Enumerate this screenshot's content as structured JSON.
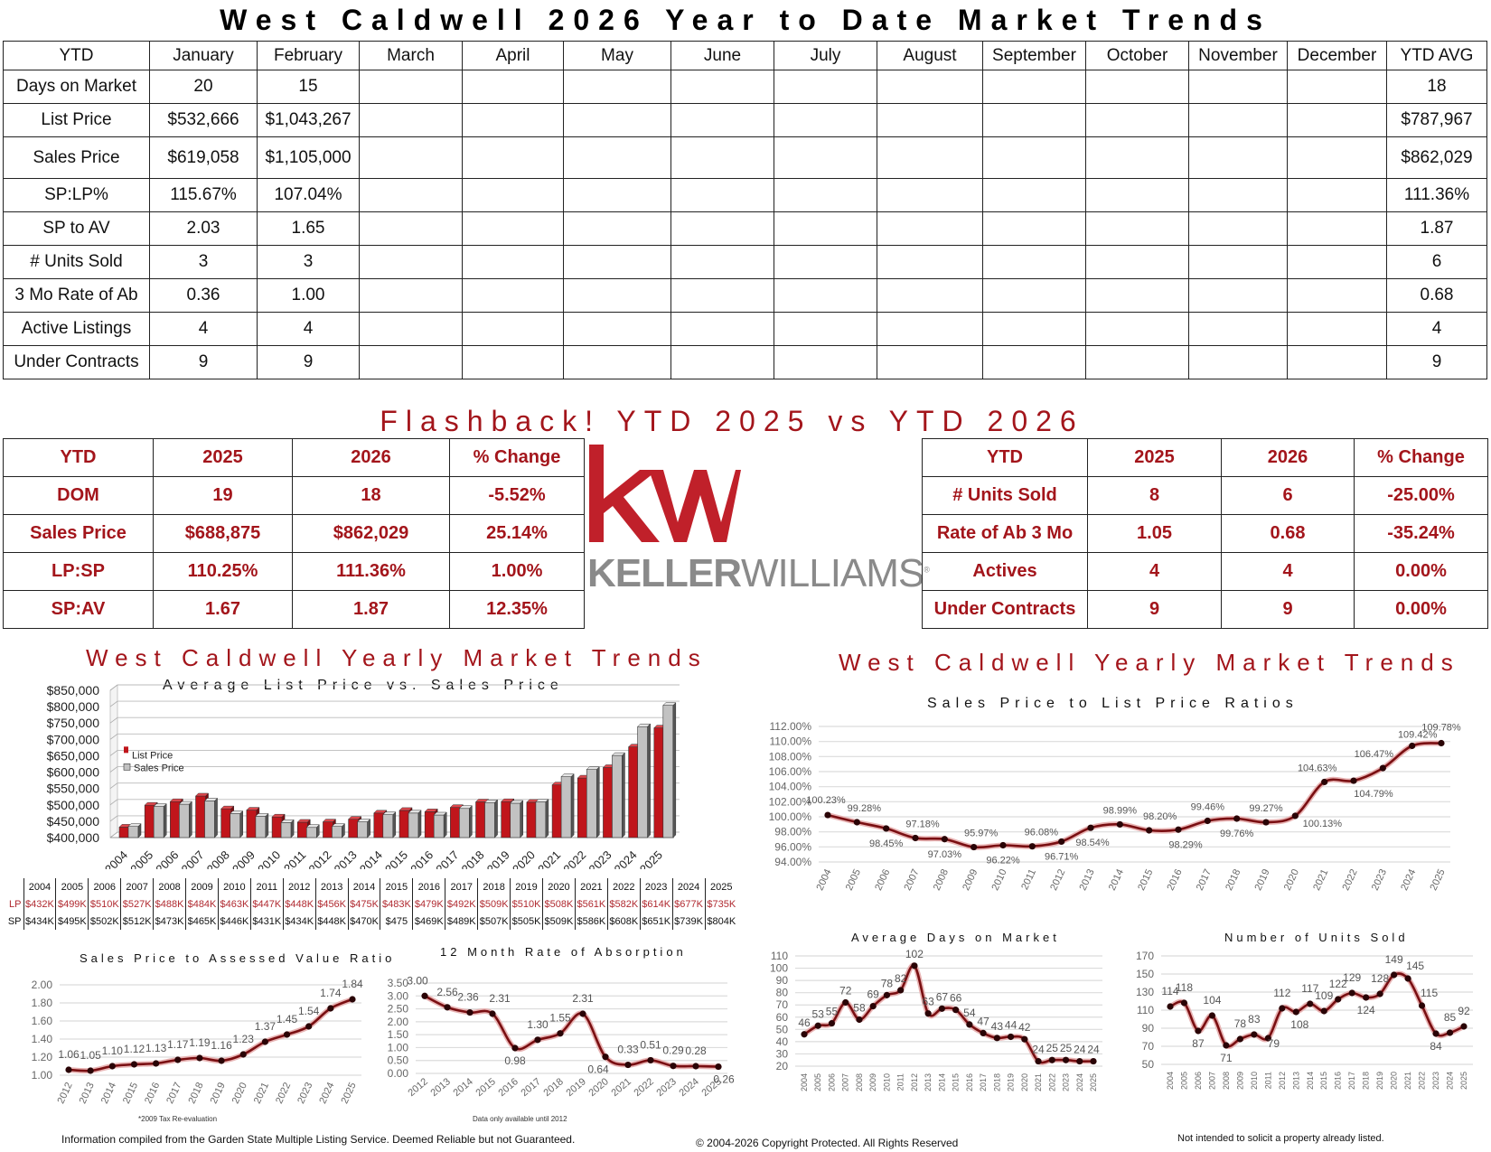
{
  "title": "West Caldwell 2026 Year to Date Market Trends",
  "monthly_table": {
    "headers": [
      "YTD",
      "January",
      "February",
      "March",
      "April",
      "May",
      "June",
      "July",
      "August",
      "September",
      "October",
      "November",
      "December",
      "YTD AVG"
    ],
    "rows": [
      {
        "label": "Days on Market",
        "jan": "20",
        "feb": "15",
        "avg": "18"
      },
      {
        "label": "List Price",
        "jan": "$532,666",
        "feb": "$1,043,267",
        "avg": "$787,967"
      },
      {
        "label": "Sales Price",
        "jan": "$619,058",
        "feb": "$1,105,000",
        "avg": "$862,029"
      },
      {
        "label": "SP:LP%",
        "jan": "115.67%",
        "feb": "107.04%",
        "avg": "111.36%"
      },
      {
        "label": "SP to AV",
        "jan": "2.03",
        "feb": "1.65",
        "avg": "1.87"
      },
      {
        "label": "# Units Sold",
        "jan": "3",
        "feb": "3",
        "avg": "6"
      },
      {
        "label": "3 Mo Rate of Ab",
        "jan": "0.36",
        "feb": "1.00",
        "avg": "0.68"
      },
      {
        "label": "Active Listings",
        "jan": "4",
        "feb": "4",
        "avg": "4"
      },
      {
        "label": "Under Contracts",
        "jan": "9",
        "feb": "9",
        "avg": "9"
      }
    ]
  },
  "flashback": {
    "title": "Flashback!  YTD 2025 vs YTD 2026",
    "headers": [
      "YTD",
      "2025",
      "2026",
      "% Change"
    ],
    "left_rows": [
      {
        "label": "DOM",
        "y2025": "19",
        "y2026": "18",
        "change": "-5.52%"
      },
      {
        "label": "Sales Price",
        "y2025": "$688,875",
        "y2026": "$862,029",
        "change": "25.14%"
      },
      {
        "label": "LP:SP",
        "y2025": "110.25%",
        "y2026": "111.36%",
        "change": "1.00%"
      },
      {
        "label": "SP:AV",
        "y2025": "1.67",
        "y2026": "1.87",
        "change": "12.35%"
      }
    ],
    "right_rows": [
      {
        "label": "# Units Sold",
        "y2025": "8",
        "y2026": "6",
        "change": "-25.00%"
      },
      {
        "label": "Rate of Ab 3 Mo",
        "y2025": "1.05",
        "y2026": "0.68",
        "change": "-35.24%"
      },
      {
        "label": "Actives",
        "y2025": "4",
        "y2026": "4",
        "change": "0.00%"
      },
      {
        "label": "Under Contracts",
        "y2025": "9",
        "y2026": "9",
        "change": "0.00%"
      }
    ]
  },
  "logo": {
    "mark": "kw",
    "bold": "KELLER",
    "light": "WILLIAMS",
    "registered": "®"
  },
  "yearly_title_left": "West Caldwell Yearly Market Trends",
  "yearly_title_right": "West Caldwell Yearly Market Trends",
  "lpsp_table": {
    "row_labels": {
      "lp": "LP",
      "sp": "SP"
    },
    "years": [
      "2004",
      "2005",
      "2006",
      "2007",
      "2008",
      "2009",
      "2010",
      "2011",
      "2012",
      "2013",
      "2014",
      "2015",
      "2016",
      "2017",
      "2018",
      "2019",
      "2020",
      "2021",
      "2022",
      "2023",
      "2024",
      "2025"
    ],
    "lp": [
      "$432K",
      "$499K",
      "$510K",
      "$527K",
      "$488K",
      "$484K",
      "$463K",
      "$447K",
      "$448K",
      "$456K",
      "$475K",
      "$483K",
      "$479K",
      "$492K",
      "$509K",
      "$510K",
      "$508K",
      "$561K",
      "$582K",
      "$614K",
      "$677K",
      "$735K"
    ],
    "sp": [
      "$434K",
      "$495K",
      "$502K",
      "$512K",
      "$473K",
      "$465K",
      "$446K",
      "$431K",
      "$434K",
      "$448K",
      "$470K",
      "$475",
      "$469K",
      "$489K",
      "$507K",
      "$505K",
      "$509K",
      "$586K",
      "$608K",
      "$651K",
      "$739K",
      "$804K"
    ]
  },
  "notes": {
    "tax_reeval": "*2009 Tax Re-evaluation",
    "data_only": "Data only available until 2012"
  },
  "footer": {
    "left": "Information compiled from the Garden State Multiple Listing Service.  Deemed Reliable but not Guaranteed.",
    "center": "© 2004-2026 Copyright Protected.  All Rights Reserved",
    "right": "Not intended to solicit a property already listed."
  },
  "colors": {
    "accent_red": "#a3151b",
    "bar_red": "#c0151b",
    "bar_gray": "#c0c0c0",
    "line": "#7a0f12",
    "logo_gray": "#8a8a8a"
  },
  "chart_data": [
    {
      "type": "bar",
      "title": "Average List Price vs. Sales Price",
      "categories": [
        "2004",
        "2005",
        "2006",
        "2007",
        "2008",
        "2009",
        "2010",
        "2011",
        "2012",
        "2013",
        "2014",
        "2015",
        "2016",
        "2017",
        "2018",
        "2019",
        "2020",
        "2021",
        "2022",
        "2023",
        "2024",
        "2025"
      ],
      "series": [
        {
          "name": "List Price",
          "values": [
            432,
            499,
            510,
            527,
            488,
            484,
            463,
            447,
            448,
            456,
            475,
            483,
            479,
            492,
            509,
            510,
            508,
            561,
            582,
            614,
            677,
            735
          ]
        },
        {
          "name": "Sales Price",
          "values": [
            434,
            495,
            502,
            512,
            473,
            465,
            446,
            431,
            434,
            448,
            470,
            475,
            469,
            489,
            507,
            505,
            509,
            586,
            608,
            651,
            739,
            804
          ]
        }
      ],
      "unit": "thousands USD",
      "ylim": [
        400000,
        850000
      ],
      "yticks": [
        "$400,000",
        "$450,000",
        "$500,000",
        "$550,000",
        "$600,000",
        "$650,000",
        "$700,000",
        "$750,000",
        "$800,000",
        "$850,000"
      ],
      "legend": [
        "List Price",
        "Sales Price"
      ],
      "legend_position": "upper-left-inside",
      "grid": true
    },
    {
      "type": "line",
      "title": "Sales Price to List Price Ratios",
      "x": [
        "2004",
        "2005",
        "2006",
        "2007",
        "2008",
        "2009",
        "2010",
        "2011",
        "2012",
        "2013",
        "2014",
        "2015",
        "2016",
        "2017",
        "2018",
        "2019",
        "2020",
        "2021",
        "2022",
        "2023",
        "2024",
        "2025"
      ],
      "values": [
        100.23,
        99.28,
        98.45,
        97.18,
        97.03,
        95.97,
        96.22,
        96.08,
        96.71,
        98.54,
        98.99,
        98.2,
        98.29,
        99.46,
        99.76,
        99.27,
        100.13,
        104.63,
        104.79,
        106.47,
        109.42,
        109.78
      ],
      "labels": [
        "100.23%",
        "99.28%",
        "98.45%",
        "97.18%",
        "97.03%",
        "95.97%",
        "96.22%",
        "96.08%",
        "96.71%",
        "98.54%",
        "98.99%",
        "98.20%",
        "98.29%",
        "99.46%",
        "99.76%",
        "99.27%",
        "100.13%",
        "104.63%",
        "104.79%",
        "106.47%",
        "109.42%",
        "109.78%"
      ],
      "ylim": [
        94,
        112
      ],
      "yticks": [
        "94.00%",
        "96.00%",
        "98.00%",
        "100.00%",
        "102.00%",
        "104.00%",
        "106.00%",
        "108.00%",
        "110.00%",
        "112.00%"
      ],
      "grid": true
    },
    {
      "type": "line",
      "title": "Sales Price to Assessed Value Ratio",
      "x": [
        "2012",
        "2013",
        "2014",
        "2015",
        "2016",
        "2017",
        "2018",
        "2019",
        "2020",
        "2021",
        "2022",
        "2023",
        "2024",
        "2025"
      ],
      "values": [
        1.06,
        1.05,
        1.1,
        1.12,
        1.13,
        1.17,
        1.19,
        1.16,
        1.23,
        1.37,
        1.45,
        1.54,
        1.74,
        1.84
      ],
      "ylim": [
        1.0,
        2.0
      ],
      "yticks": [
        "1.00",
        "1.20",
        "1.40",
        "1.60",
        "1.80",
        "2.00"
      ],
      "grid": true
    },
    {
      "type": "line",
      "title": "12 Month Rate of Absorption",
      "x": [
        "2012",
        "2013",
        "2014",
        "2015",
        "2016",
        "2017",
        "2018",
        "2019",
        "2020",
        "2021",
        "2022",
        "2023",
        "2024",
        "2025"
      ],
      "values": [
        3.0,
        2.56,
        2.36,
        2.31,
        0.98,
        1.3,
        1.55,
        2.31,
        0.64,
        0.33,
        0.51,
        0.29,
        0.28,
        0.26
      ],
      "ylim": [
        0,
        3.5
      ],
      "yticks": [
        "0.00",
        "0.50",
        "1.00",
        "1.50",
        "2.00",
        "2.50",
        "3.00",
        "3.50"
      ],
      "grid": true
    },
    {
      "type": "line",
      "title": "Average Days on Market",
      "x": [
        "2004",
        "2005",
        "2006",
        "2007",
        "2008",
        "2009",
        "2010",
        "2011",
        "2012",
        "2013",
        "2014",
        "2015",
        "2016",
        "2017",
        "2018",
        "2019",
        "2020",
        "2021",
        "2022",
        "2023",
        "2024",
        "2025"
      ],
      "values": [
        46,
        53,
        55,
        72,
        58,
        69,
        78,
        82,
        102,
        63,
        67,
        66,
        54,
        47,
        43,
        44,
        42,
        24,
        25,
        25,
        24,
        24
      ],
      "ylim": [
        20,
        110
      ],
      "yticks": [
        "20",
        "30",
        "40",
        "50",
        "60",
        "70",
        "80",
        "90",
        "100",
        "110"
      ],
      "grid": true
    },
    {
      "type": "line",
      "title": "Number of Units Sold",
      "x": [
        "2004",
        "2005",
        "2006",
        "2007",
        "2008",
        "2009",
        "2010",
        "2011",
        "2012",
        "2013",
        "2014",
        "2015",
        "2016",
        "2017",
        "2018",
        "2019",
        "2020",
        "2021",
        "2022",
        "2023",
        "2024",
        "2025"
      ],
      "values": [
        114,
        118,
        87,
        104,
        71,
        78,
        83,
        79,
        112,
        108,
        117,
        109,
        122,
        129,
        124,
        128,
        149,
        145,
        115,
        84,
        85,
        92
      ],
      "ylim": [
        50,
        170
      ],
      "yticks": [
        "50",
        "70",
        "90",
        "110",
        "130",
        "150",
        "170"
      ],
      "grid": true
    }
  ]
}
